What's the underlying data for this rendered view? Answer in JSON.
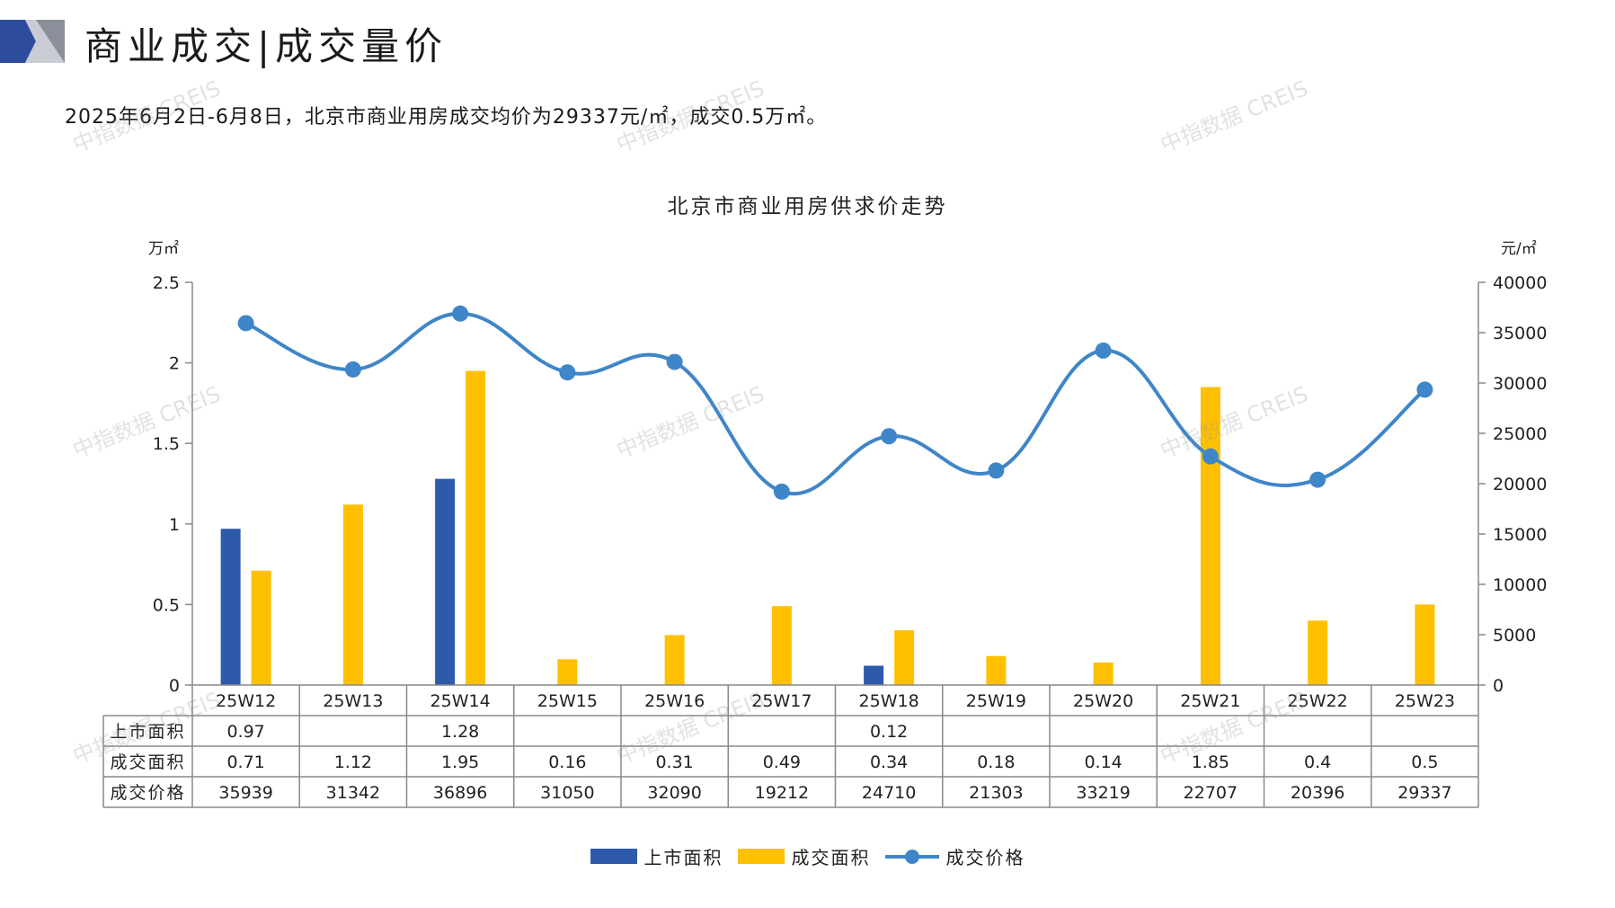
{
  "page": {
    "title": "商业成交|成交量价",
    "summary": "2025年6月2日-6月8日，北京市商业用房成交均价为29337元/㎡，成交0.5万㎡。",
    "watermark": "中指数据 CREIS"
  },
  "colors": {
    "listed": "#2E5AAC",
    "deal_area": "#FFC000",
    "price": "#3F86C8"
  },
  "chart_data": {
    "type": "bar",
    "title": "北京市商业用房供求价走势",
    "y_left_unit": "万㎡",
    "y_right_unit": "元/㎡",
    "ylim_left": [
      0,
      2.5
    ],
    "ylim_right": [
      0,
      40000
    ],
    "y_left_ticks": [
      "0",
      "0.5",
      "1",
      "1.5",
      "2",
      "2.5"
    ],
    "y_right_ticks": [
      "0",
      "5000",
      "10000",
      "15000",
      "20000",
      "25000",
      "30000",
      "35000",
      "40000"
    ],
    "categories": [
      "25W12",
      "25W13",
      "25W14",
      "25W15",
      "25W16",
      "25W17",
      "25W18",
      "25W19",
      "25W20",
      "25W21",
      "25W22",
      "25W23"
    ],
    "series": [
      {
        "name": "上市面积",
        "type": "bar",
        "axis": "left",
        "values": [
          0.97,
          null,
          1.28,
          null,
          null,
          null,
          0.12,
          null,
          null,
          null,
          null,
          null
        ],
        "labels": [
          "0.97",
          "",
          "1.28",
          "",
          "",
          "",
          "0.12",
          "",
          "",
          "",
          "",
          ""
        ]
      },
      {
        "name": "成交面积",
        "type": "bar",
        "axis": "left",
        "values": [
          0.71,
          1.12,
          1.95,
          0.16,
          0.31,
          0.49,
          0.34,
          0.18,
          0.14,
          1.85,
          0.4,
          0.5
        ],
        "labels": [
          "0.71",
          "1.12",
          "1.95",
          "0.16",
          "0.31",
          "0.49",
          "0.34",
          "0.18",
          "0.14",
          "1.85",
          "0.4",
          "0.5"
        ]
      },
      {
        "name": "成交价格",
        "type": "line",
        "axis": "right",
        "values": [
          35939,
          31342,
          36896,
          31050,
          32090,
          19212,
          24710,
          21303,
          33219,
          22707,
          20396,
          29337
        ],
        "labels": [
          "35939",
          "31342",
          "36896",
          "31050",
          "32090",
          "19212",
          "24710",
          "21303",
          "33219",
          "22707",
          "20396",
          "29337"
        ]
      }
    ],
    "legend_position": "bottom",
    "grid": false
  }
}
